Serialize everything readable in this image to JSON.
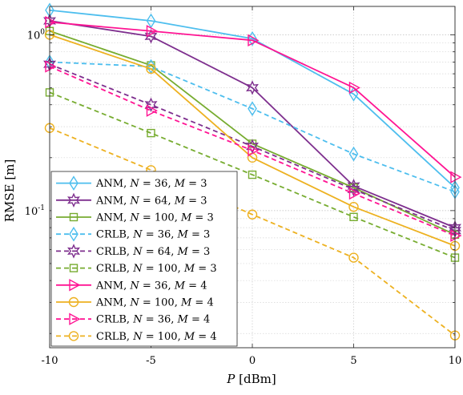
{
  "chart_data": {
    "type": "line",
    "xlabel_italic": "P",
    "xlabel_rest": " [dBm]",
    "ylabel": "RMSE [m]",
    "yscale": "log",
    "xlim": [
      -10,
      10
    ],
    "ylim": [
      0.0166,
      1.45
    ],
    "x": [
      -10,
      -5,
      0,
      5,
      10
    ],
    "x_tick_labels": [
      "-10",
      "-5",
      "0",
      "5",
      "10"
    ],
    "y_ticks": [
      {
        "value": 1,
        "base": "10",
        "exp": "0"
      },
      {
        "value": 0.1,
        "base": "10",
        "exp": "-1"
      }
    ],
    "grid": true,
    "legend_position": "lower-left",
    "series": [
      {
        "name": "ANM, N = 36, M = 3",
        "label": {
          "algo": "ANM",
          "n": "36",
          "m": "3"
        },
        "color": "#4dbeee",
        "dash": "solid",
        "marker": "diamond",
        "values": [
          1.38,
          1.2,
          0.95,
          0.46,
          0.135
        ]
      },
      {
        "name": "ANM, N = 64, M = 3",
        "label": {
          "algo": "ANM",
          "n": "64",
          "m": "3"
        },
        "color": "#7e2f8e",
        "dash": "solid",
        "marker": "hexagram",
        "values": [
          1.2,
          0.98,
          0.5,
          0.138,
          0.08
        ]
      },
      {
        "name": "ANM, N = 100, M = 3",
        "label": {
          "algo": "ANM",
          "n": "100",
          "m": "3"
        },
        "color": "#77ac30",
        "dash": "solid",
        "marker": "square",
        "values": [
          1.05,
          0.67,
          0.24,
          0.135,
          0.073
        ]
      },
      {
        "name": "CRLB, N = 36, M = 3",
        "label": {
          "algo": "CRLB",
          "n": "36",
          "m": "3"
        },
        "color": "#4dbeee",
        "dash": "dashed",
        "marker": "diamond",
        "values": [
          0.7,
          0.66,
          0.38,
          0.21,
          0.128
        ]
      },
      {
        "name": "CRLB, N = 64, M = 3",
        "label": {
          "algo": "CRLB",
          "n": "64",
          "m": "3"
        },
        "color": "#7e2f8e",
        "dash": "dashed",
        "marker": "hexagram",
        "values": [
          0.68,
          0.4,
          0.232,
          0.132,
          0.077
        ]
      },
      {
        "name": "CRLB, N = 100, M = 3",
        "label": {
          "algo": "CRLB",
          "n": "100",
          "m": "3"
        },
        "color": "#77ac30",
        "dash": "dashed",
        "marker": "square",
        "values": [
          0.47,
          0.276,
          0.16,
          0.092,
          0.054
        ]
      },
      {
        "name": "ANM, N = 36, M = 4",
        "label": {
          "algo": "ANM",
          "n": "36",
          "m": "4"
        },
        "color": "#ff1493",
        "dash": "solid",
        "marker": "triangle-right",
        "values": [
          1.18,
          1.05,
          0.93,
          0.5,
          0.155
        ]
      },
      {
        "name": "ANM, N = 100, M = 4",
        "label": {
          "algo": "ANM",
          "n": "100",
          "m": "4"
        },
        "color": "#edb120",
        "dash": "solid",
        "marker": "circle",
        "values": [
          1.0,
          0.64,
          0.2,
          0.105,
          0.063
        ]
      },
      {
        "name": "CRLB, N = 36, M = 4",
        "label": {
          "algo": "CRLB",
          "n": "36",
          "m": "4"
        },
        "color": "#ff1493",
        "dash": "dashed",
        "marker": "triangle-right",
        "values": [
          0.66,
          0.37,
          0.22,
          0.125,
          0.072
        ]
      },
      {
        "name": "CRLB, N = 100, M = 4",
        "label": {
          "algo": "CRLB",
          "n": "100",
          "m": "4"
        },
        "color": "#edb120",
        "dash": "dashed",
        "marker": "circle",
        "values": [
          0.295,
          0.17,
          0.095,
          0.054,
          0.0195
        ]
      }
    ]
  }
}
